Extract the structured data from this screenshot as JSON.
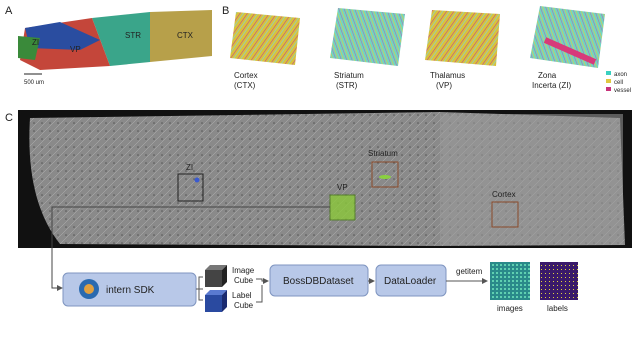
{
  "panel_a": {
    "label": "A",
    "regions": [
      "ZI",
      "VP",
      "STR",
      "CTX"
    ],
    "scale_bar": "500 um"
  },
  "panel_b": {
    "label": "B",
    "tiles": [
      {
        "line1": "Cortex",
        "line2": "(CTX)"
      },
      {
        "line1": "Striatum",
        "line2": "(STR)"
      },
      {
        "line1": "Thalamus",
        "line2": "(VP)"
      },
      {
        "line1": "Zona",
        "line2": "Incerta (ZI)"
      }
    ],
    "legend": [
      "axon",
      "cell",
      "vessel"
    ]
  },
  "panel_c": {
    "label": "C",
    "rois": [
      "ZI",
      "VP",
      "Striatum",
      "Cortex"
    ],
    "pipeline": {
      "sdk": "intern SDK",
      "image_cube": [
        "Image",
        "Cube"
      ],
      "label_cube": [
        "Label",
        "Cube"
      ],
      "dataset": "BossDBDataset",
      "loader": "DataLoader",
      "step": "getitem",
      "outputs": [
        "images",
        "labels"
      ]
    }
  }
}
